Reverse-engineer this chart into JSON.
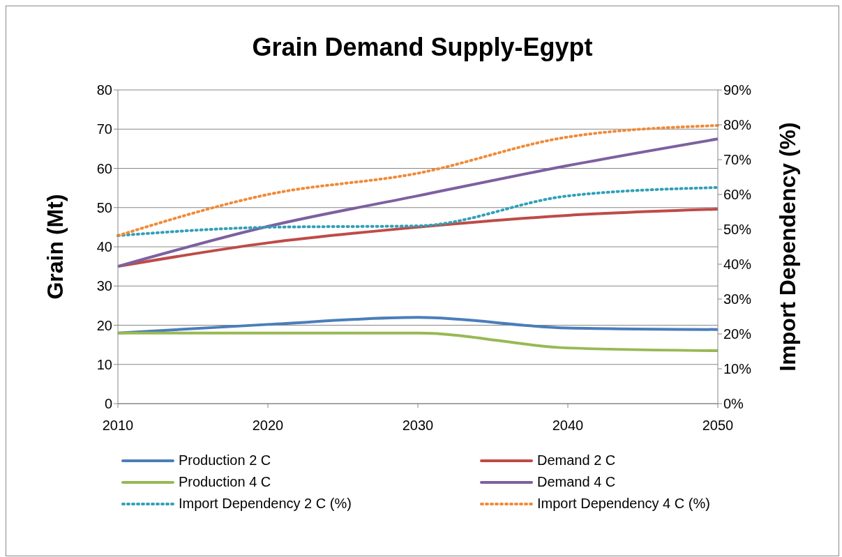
{
  "chart_data": {
    "type": "line",
    "title": "Grain Demand Supply-Egypt",
    "ylabel": "Grain (Mt)",
    "y2label": "Import Dependency (%)",
    "categories": [
      "2010",
      "2020",
      "2030",
      "2040",
      "2050"
    ],
    "ylim": [
      0,
      80
    ],
    "yticks": [
      0,
      10,
      20,
      30,
      40,
      50,
      60,
      70,
      80
    ],
    "y2lim": [
      0,
      90
    ],
    "y2ticks": [
      {
        "value": 0,
        "label": "0%"
      },
      {
        "value": 10,
        "label": "10%"
      },
      {
        "value": 20,
        "label": "20%"
      },
      {
        "value": 30,
        "label": "30%"
      },
      {
        "value": 40,
        "label": "40%"
      },
      {
        "value": 50,
        "label": "50%"
      },
      {
        "value": 60,
        "label": "60%"
      },
      {
        "value": 70,
        "label": "70%"
      },
      {
        "value": 80,
        "label": "80%"
      },
      {
        "value": 90,
        "label": "90%"
      }
    ],
    "grid": "y",
    "legend": "bottom",
    "marker": "none",
    "series": [
      {
        "name": "Production 2 C",
        "color": "#4a7ebb",
        "line_style": "solid",
        "values": [
          18,
          20.2,
          22,
          19.3,
          18.9
        ]
      },
      {
        "name": "Demand 2 C",
        "color": "#be4b48",
        "line_style": "solid",
        "values": [
          35,
          41,
          45,
          48,
          49.6
        ]
      },
      {
        "name": "Production 4 C",
        "color": "#98b954",
        "line_style": "solid",
        "values": [
          18,
          18,
          18,
          14.2,
          13.5
        ]
      },
      {
        "name": "Demand 4 C",
        "color": "#7d60a0",
        "line_style": "solid",
        "values": [
          35,
          45.2,
          53,
          60.7,
          67.5
        ]
      },
      {
        "name": "Import Dependency 2 C (%)",
        "color": "#31a0b8",
        "line_style": "dotted",
        "axis": "y2",
        "values": [
          48.2,
          50.6,
          51,
          59.6,
          62
        ]
      },
      {
        "name": "Import Dependency 4 C (%)",
        "color": "#f08a38",
        "line_style": "dotted",
        "axis": "y2",
        "values": [
          48.2,
          60,
          66.1,
          76.5,
          79.8
        ]
      }
    ]
  }
}
